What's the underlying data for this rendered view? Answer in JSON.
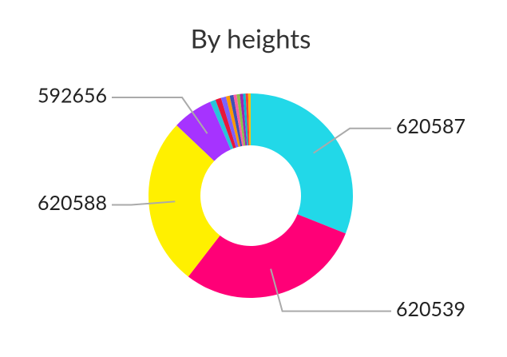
{
  "chart_data": {
    "type": "donut",
    "title": "By heights",
    "categories": [
      "620587",
      "620539",
      "620588",
      "592656",
      null,
      null,
      null,
      null,
      null,
      null,
      null,
      null,
      null,
      null,
      null
    ],
    "values": [
      31,
      29.4,
      26.6,
      6.4,
      0.9,
      0.9,
      0.8,
      0.6,
      0.6,
      0.5,
      0.5,
      0.5,
      0.4,
      0.4,
      0.4
    ],
    "colors": [
      "#22d8e8",
      "#ff0077",
      "#fff000",
      "#a633ff",
      "#26c6da",
      "#e8173a",
      "#7b61ff",
      "#ff9800",
      "#3f51b5",
      "#ff5fa2",
      "#8bc34a",
      "#9c27b0",
      "#00bcd4",
      "#f44336",
      "#ffc107"
    ]
  }
}
